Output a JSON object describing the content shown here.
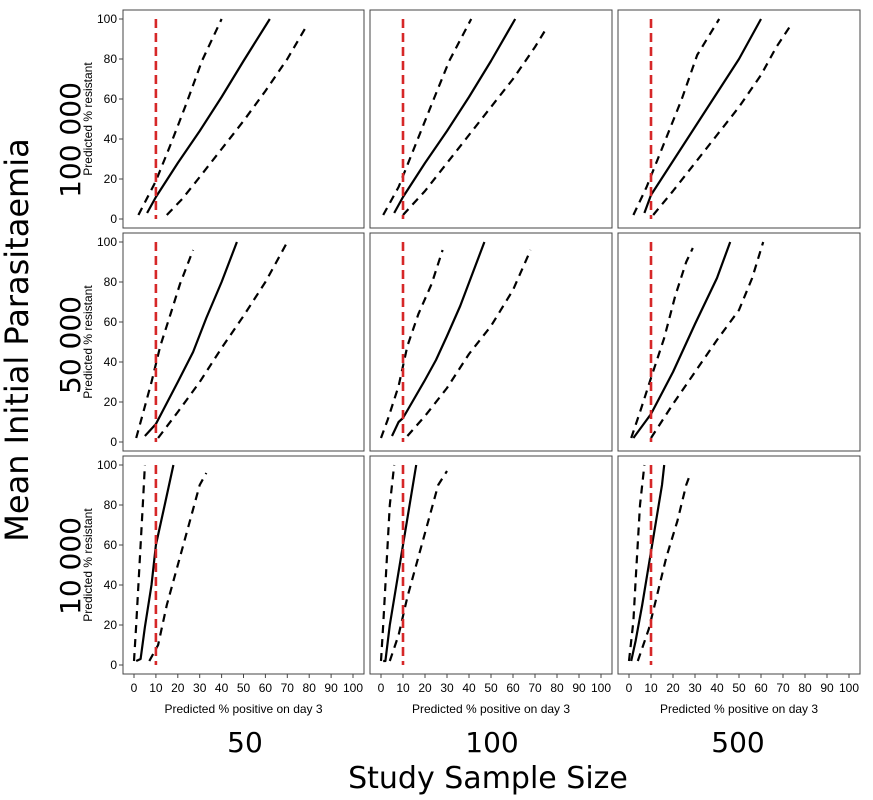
{
  "figure": {
    "row_axis_title": "Mean Initial Parasitaemia",
    "col_axis_title": "Study Sample Size",
    "row_labels": [
      "100 000",
      "50 000",
      "10 000"
    ],
    "col_labels": [
      "50",
      "100",
      "500"
    ],
    "panel_ylabel": "Predicted % resistant",
    "panel_xlabel": "Predicted % positive on day 3",
    "colors": {
      "estimate": "#000000",
      "ci": "#000000",
      "reference": "#d62728"
    }
  },
  "chart_data": {
    "type": "line",
    "xlim": [
      0,
      100
    ],
    "ylim": [
      0,
      100
    ],
    "x_ticks": [
      0,
      10,
      20,
      30,
      40,
      50,
      60,
      70,
      80,
      90,
      100
    ],
    "y_ticks": [
      0,
      20,
      40,
      60,
      80,
      100
    ],
    "reference_line_x": 10,
    "grid": false,
    "panels": [
      {
        "row": "100 000",
        "col": "50",
        "estimate": [
          [
            6,
            3
          ],
          [
            10,
            11
          ],
          [
            20,
            28
          ],
          [
            30,
            44
          ],
          [
            40,
            61
          ],
          [
            50,
            79
          ],
          [
            62,
            100
          ]
        ],
        "lower": [
          [
            15,
            2
          ],
          [
            22,
            10
          ],
          [
            30,
            21
          ],
          [
            40,
            35
          ],
          [
            50,
            49
          ],
          [
            60,
            64
          ],
          [
            70,
            80
          ],
          [
            78,
            95
          ]
        ],
        "upper": [
          [
            2,
            2
          ],
          [
            10,
            19
          ],
          [
            17,
            38
          ],
          [
            24,
            58
          ],
          [
            31,
            79
          ],
          [
            40,
            100
          ]
        ]
      },
      {
        "row": "100 000",
        "col": "100",
        "estimate": [
          [
            6,
            3
          ],
          [
            10,
            11
          ],
          [
            20,
            28
          ],
          [
            30,
            44
          ],
          [
            40,
            61
          ],
          [
            50,
            79
          ],
          [
            61,
            100
          ]
        ],
        "lower": [
          [
            10,
            2
          ],
          [
            20,
            14
          ],
          [
            30,
            28
          ],
          [
            40,
            42
          ],
          [
            50,
            56
          ],
          [
            60,
            70
          ],
          [
            70,
            86
          ],
          [
            75,
            95
          ]
        ],
        "upper": [
          [
            1,
            2
          ],
          [
            8,
            16
          ],
          [
            16,
            38
          ],
          [
            24,
            60
          ],
          [
            31,
            79
          ],
          [
            41,
            100
          ]
        ]
      },
      {
        "row": "100 000",
        "col": "500",
        "estimate": [
          [
            7,
            3
          ],
          [
            10,
            12
          ],
          [
            20,
            29
          ],
          [
            30,
            46
          ],
          [
            40,
            63
          ],
          [
            50,
            80
          ],
          [
            60,
            100
          ]
        ],
        "lower": [
          [
            11,
            2
          ],
          [
            20,
            14
          ],
          [
            30,
            28
          ],
          [
            40,
            42
          ],
          [
            50,
            56
          ],
          [
            60,
            72
          ],
          [
            67,
            86
          ],
          [
            73,
            96
          ]
        ],
        "upper": [
          [
            2,
            2
          ],
          [
            8,
            16
          ],
          [
            16,
            38
          ],
          [
            24,
            60
          ],
          [
            31,
            82
          ],
          [
            41,
            100
          ]
        ]
      },
      {
        "row": "50 000",
        "col": "50",
        "estimate": [
          [
            5,
            3
          ],
          [
            10,
            9
          ],
          [
            20,
            30
          ],
          [
            27,
            45
          ],
          [
            33,
            62
          ],
          [
            40,
            80
          ],
          [
            47,
            100
          ]
        ],
        "lower": [
          [
            11,
            2
          ],
          [
            20,
            15
          ],
          [
            30,
            30
          ],
          [
            40,
            47
          ],
          [
            50,
            63
          ],
          [
            60,
            80
          ],
          [
            65,
            90
          ],
          [
            70,
            100
          ]
        ],
        "upper": [
          [
            1,
            2
          ],
          [
            4,
            14
          ],
          [
            8,
            30
          ],
          [
            12,
            48
          ],
          [
            17,
            65
          ],
          [
            21,
            79
          ],
          [
            27,
            96
          ]
        ]
      },
      {
        "row": "50 000",
        "col": "100",
        "estimate": [
          [
            5,
            3
          ],
          [
            8,
            10
          ],
          [
            10,
            12
          ],
          [
            20,
            31
          ],
          [
            25,
            41
          ],
          [
            30,
            53
          ],
          [
            36,
            68
          ],
          [
            47,
            100
          ]
        ],
        "lower": [
          [
            12,
            3
          ],
          [
            20,
            13
          ],
          [
            30,
            27
          ],
          [
            40,
            44
          ],
          [
            50,
            58
          ],
          [
            60,
            76
          ],
          [
            68,
            96
          ]
        ],
        "upper": [
          [
            0,
            2
          ],
          [
            3,
            11
          ],
          [
            8,
            28
          ],
          [
            12,
            48
          ],
          [
            17,
            64
          ],
          [
            23,
            79
          ],
          [
            28,
            96
          ]
        ]
      },
      {
        "row": "50 000",
        "col": "500",
        "estimate": [
          [
            2,
            2
          ],
          [
            10,
            14
          ],
          [
            20,
            35
          ],
          [
            30,
            59
          ],
          [
            40,
            82
          ],
          [
            46,
            100
          ]
        ],
        "lower": [
          [
            10,
            2
          ],
          [
            20,
            19
          ],
          [
            30,
            35
          ],
          [
            40,
            51
          ],
          [
            50,
            66
          ],
          [
            56,
            82
          ],
          [
            61,
            100
          ]
        ],
        "upper": [
          [
            1,
            2
          ],
          [
            5,
            15
          ],
          [
            10,
            32
          ],
          [
            16,
            52
          ],
          [
            21,
            73
          ],
          [
            26,
            90
          ],
          [
            29,
            97
          ]
        ]
      },
      {
        "row": "10 000",
        "col": "50",
        "estimate": [
          [
            1,
            2
          ],
          [
            3,
            3
          ],
          [
            5,
            19
          ],
          [
            8,
            40
          ],
          [
            10,
            60
          ],
          [
            14,
            80
          ],
          [
            18,
            100
          ]
        ],
        "lower": [
          [
            7,
            2
          ],
          [
            11,
            10
          ],
          [
            15,
            30
          ],
          [
            20,
            50
          ],
          [
            25,
            70
          ],
          [
            30,
            90
          ],
          [
            33,
            96
          ]
        ],
        "upper": [
          [
            0,
            2
          ],
          [
            1,
            20
          ],
          [
            2,
            40
          ],
          [
            3,
            60
          ],
          [
            4,
            80
          ],
          [
            5,
            100
          ]
        ]
      },
      {
        "row": "10 000",
        "col": "100",
        "estimate": [
          [
            1,
            2
          ],
          [
            2,
            2
          ],
          [
            4,
            20
          ],
          [
            7,
            40
          ],
          [
            10,
            60
          ],
          [
            13,
            80
          ],
          [
            16,
            100
          ]
        ],
        "lower": [
          [
            4,
            2
          ],
          [
            8,
            15
          ],
          [
            12,
            34
          ],
          [
            16,
            50
          ],
          [
            21,
            70
          ],
          [
            26,
            90
          ],
          [
            30,
            97
          ]
        ],
        "upper": [
          [
            0,
            2
          ],
          [
            1,
            20
          ],
          [
            2,
            40
          ],
          [
            3,
            60
          ],
          [
            4,
            80
          ],
          [
            6,
            100
          ]
        ]
      },
      {
        "row": "10 000",
        "col": "500",
        "estimate": [
          [
            1,
            2
          ],
          [
            3,
            12
          ],
          [
            6,
            30
          ],
          [
            9,
            50
          ],
          [
            12,
            70
          ],
          [
            15,
            90
          ],
          [
            16,
            100
          ]
        ],
        "lower": [
          [
            4,
            2
          ],
          [
            9,
            18
          ],
          [
            13,
            36
          ],
          [
            17,
            54
          ],
          [
            22,
            72
          ],
          [
            26,
            90
          ],
          [
            28,
            96
          ]
        ],
        "upper": [
          [
            0,
            2
          ],
          [
            2,
            22
          ],
          [
            3,
            42
          ],
          [
            4,
            61
          ],
          [
            5,
            80
          ],
          [
            7,
            100
          ]
        ]
      }
    ]
  }
}
